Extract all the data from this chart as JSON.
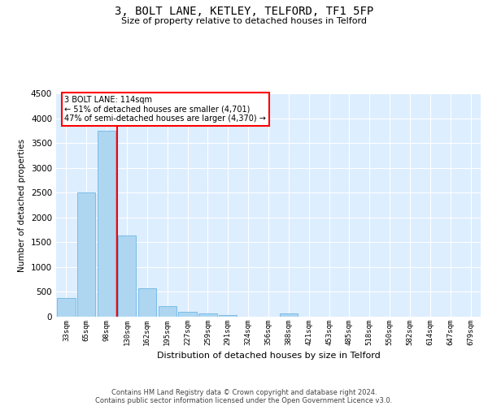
{
  "title": "3, BOLT LANE, KETLEY, TELFORD, TF1 5FP",
  "subtitle": "Size of property relative to detached houses in Telford",
  "xlabel": "Distribution of detached houses by size in Telford",
  "ylabel": "Number of detached properties",
  "categories": [
    "33sqm",
    "65sqm",
    "98sqm",
    "130sqm",
    "162sqm",
    "195sqm",
    "227sqm",
    "259sqm",
    "291sqm",
    "324sqm",
    "356sqm",
    "388sqm",
    "421sqm",
    "453sqm",
    "485sqm",
    "518sqm",
    "550sqm",
    "582sqm",
    "614sqm",
    "647sqm",
    "679sqm"
  ],
  "values": [
    370,
    2500,
    3750,
    1640,
    580,
    220,
    100,
    60,
    40,
    0,
    0,
    60,
    0,
    0,
    0,
    0,
    0,
    0,
    0,
    0,
    0
  ],
  "bar_color": "#aed6f1",
  "bar_edge_color": "#5dade2",
  "grid_color": "#cccccc",
  "background_color": "#ddeeff",
  "vline_bar_index": 2,
  "vline_color": "red",
  "annotation_text": "3 BOLT LANE: 114sqm\n← 51% of detached houses are smaller (4,701)\n47% of semi-detached houses are larger (4,370) →",
  "annotation_box_color": "white",
  "annotation_box_edge_color": "red",
  "footer_line1": "Contains HM Land Registry data © Crown copyright and database right 2024.",
  "footer_line2": "Contains public sector information licensed under the Open Government Licence v3.0.",
  "ylim": [
    0,
    4500
  ],
  "yticks": [
    0,
    500,
    1000,
    1500,
    2000,
    2500,
    3000,
    3500,
    4000,
    4500
  ]
}
